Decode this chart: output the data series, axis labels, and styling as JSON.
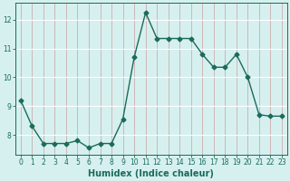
{
  "x": [
    0,
    1,
    2,
    3,
    4,
    5,
    6,
    7,
    8,
    9,
    10,
    11,
    12,
    13,
    14,
    15,
    16,
    17,
    18,
    19,
    20,
    21,
    22,
    23
  ],
  "y": [
    9.2,
    8.3,
    7.7,
    7.7,
    7.7,
    7.8,
    7.55,
    7.7,
    7.7,
    8.55,
    10.7,
    12.25,
    11.35,
    11.35,
    11.35,
    11.35,
    10.8,
    10.35,
    10.35,
    10.8,
    10.0,
    8.7,
    8.65,
    8.65
  ],
  "line_color": "#1a6b5a",
  "marker": "D",
  "marker_size": 2.5,
  "bg_color": "#d6f0ef",
  "grid_color_v": "#c8a0a0",
  "grid_color_h": "#ffffff",
  "xlabel": "Humidex (Indice chaleur)",
  "ylabel": "",
  "xlim": [
    -0.5,
    23.5
  ],
  "ylim": [
    7.3,
    12.6
  ],
  "yticks": [
    8,
    9,
    10,
    11,
    12
  ],
  "xticks": [
    0,
    1,
    2,
    3,
    4,
    5,
    6,
    7,
    8,
    9,
    10,
    11,
    12,
    13,
    14,
    15,
    16,
    17,
    18,
    19,
    20,
    21,
    22,
    23
  ],
  "xtick_labels": [
    "0",
    "1",
    "2",
    "3",
    "4",
    "5",
    "6",
    "7",
    "8",
    "9",
    "10",
    "11",
    "12",
    "13",
    "14",
    "15",
    "16",
    "17",
    "18",
    "19",
    "20",
    "21",
    "22",
    "23"
  ],
  "tick_color": "#1a6b5a",
  "label_fontsize": 7,
  "tick_fontsize": 5.5,
  "linewidth": 1.0
}
